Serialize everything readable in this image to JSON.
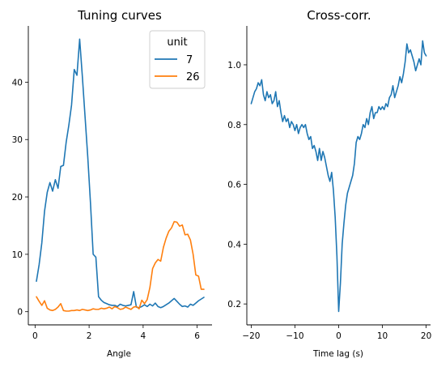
{
  "chart_data": [
    {
      "type": "line",
      "title": "Tuning curves",
      "xlabel": "Angle",
      "ylabel": "",
      "xlim": [
        -0.25,
        6.55
      ],
      "ylim": [
        -2.3,
        49.8
      ],
      "xticks": [
        0,
        2,
        4,
        6
      ],
      "yticks": [
        0,
        10,
        20,
        30,
        40
      ],
      "grid": false,
      "legend": {
        "title": "unit",
        "placement": "top-right"
      },
      "series": [
        {
          "name": "7",
          "color": "#1f77b4",
          "x": [
            0.05,
            0.15,
            0.25,
            0.35,
            0.45,
            0.55,
            0.65,
            0.75,
            0.85,
            0.95,
            1.05,
            1.15,
            1.25,
            1.35,
            1.45,
            1.55,
            1.65,
            1.75,
            1.85,
            1.95,
            2.05,
            2.15,
            2.25,
            2.35,
            2.45,
            2.55,
            2.65,
            2.75,
            2.85,
            2.95,
            3.05,
            3.15,
            3.25,
            3.35,
            3.45,
            3.55,
            3.65,
            3.75,
            3.85,
            3.95,
            4.05,
            4.15,
            4.25,
            4.35,
            4.45,
            4.55,
            4.65,
            4.75,
            4.85,
            4.95,
            5.05,
            5.15,
            5.25,
            5.35,
            5.45,
            5.55,
            5.65,
            5.75,
            5.85,
            5.95,
            6.05,
            6.15,
            6.25
          ],
          "values": [
            5.3,
            8.2,
            12.0,
            17.5,
            20.8,
            22.5,
            21.0,
            23.0,
            21.5,
            25.3,
            25.5,
            29.5,
            32.5,
            36.0,
            42.2,
            41.2,
            47.5,
            41.0,
            34.0,
            27.0,
            19.0,
            10.0,
            9.5,
            2.6,
            2.0,
            1.6,
            1.4,
            1.2,
            1.1,
            1.1,
            0.9,
            1.3,
            1.1,
            1.0,
            1.1,
            1.2,
            3.5,
            0.8,
            0.7,
            0.9,
            1.2,
            0.9,
            1.3,
            1.0,
            1.5,
            0.9,
            0.7,
            0.9,
            1.2,
            1.5,
            1.9,
            2.3,
            1.8,
            1.3,
            0.9,
            1.0,
            0.8,
            1.3,
            1.1,
            1.5,
            1.9,
            2.2,
            2.5
          ]
        },
        {
          "name": "26",
          "color": "#ff7f0e",
          "x": [
            0.05,
            0.15,
            0.25,
            0.35,
            0.45,
            0.55,
            0.65,
            0.75,
            0.85,
            0.95,
            1.05,
            1.15,
            1.25,
            1.35,
            1.45,
            1.55,
            1.65,
            1.75,
            1.85,
            1.95,
            2.05,
            2.15,
            2.25,
            2.35,
            2.45,
            2.55,
            2.65,
            2.75,
            2.85,
            2.95,
            3.05,
            3.15,
            3.25,
            3.35,
            3.45,
            3.55,
            3.65,
            3.75,
            3.85,
            3.95,
            4.05,
            4.15,
            4.25,
            4.35,
            4.45,
            4.55,
            4.65,
            4.75,
            4.85,
            4.95,
            5.05,
            5.15,
            5.25,
            5.35,
            5.45,
            5.55,
            5.65,
            5.75,
            5.85,
            5.95,
            6.05,
            6.15,
            6.25
          ],
          "values": [
            2.6,
            1.8,
            1.1,
            1.9,
            0.6,
            0.3,
            0.2,
            0.4,
            0.8,
            1.4,
            0.2,
            0.1,
            0.1,
            0.2,
            0.2,
            0.3,
            0.2,
            0.4,
            0.3,
            0.2,
            0.3,
            0.5,
            0.4,
            0.4,
            0.6,
            0.5,
            0.6,
            0.8,
            0.5,
            0.9,
            0.7,
            0.4,
            0.5,
            0.8,
            0.6,
            0.4,
            0.8,
            0.9,
            0.5,
            2.0,
            1.4,
            2.1,
            4.2,
            7.5,
            8.5,
            9.1,
            8.8,
            11.2,
            12.8,
            14.0,
            14.6,
            15.7,
            15.6,
            14.9,
            15.1,
            13.4,
            13.5,
            12.5,
            10.0,
            6.4,
            6.2,
            3.9,
            3.9
          ]
        }
      ]
    },
    {
      "type": "line",
      "title": "Cross-corr.",
      "xlabel": "Time lag (s)",
      "ylabel": "",
      "xlim": [
        -21.0,
        21.0
      ],
      "ylim": [
        0.13,
        1.13
      ],
      "xticks": [
        -20,
        -10,
        0,
        10,
        20
      ],
      "yticks": [
        0.2,
        0.4,
        0.6,
        0.8,
        1.0
      ],
      "grid": false,
      "series": [
        {
          "color": "#1f77b4",
          "x": [
            -20.0,
            -19.6,
            -19.2,
            -18.8,
            -18.4,
            -18.0,
            -17.6,
            -17.2,
            -16.8,
            -16.4,
            -16.0,
            -15.6,
            -15.2,
            -14.8,
            -14.4,
            -14.0,
            -13.6,
            -13.2,
            -12.8,
            -12.4,
            -12.0,
            -11.6,
            -11.2,
            -10.8,
            -10.4,
            -10.0,
            -9.6,
            -9.2,
            -8.8,
            -8.4,
            -8.0,
            -7.6,
            -7.2,
            -6.8,
            -6.4,
            -6.0,
            -5.6,
            -5.2,
            -4.8,
            -4.4,
            -4.0,
            -3.6,
            -3.2,
            -2.8,
            -2.4,
            -2.0,
            -1.6,
            -1.2,
            -0.8,
            -0.4,
            0.0,
            0.4,
            0.8,
            1.2,
            1.6,
            2.0,
            2.4,
            2.8,
            3.2,
            3.6,
            4.0,
            4.4,
            4.8,
            5.2,
            5.6,
            6.0,
            6.4,
            6.8,
            7.2,
            7.6,
            8.0,
            8.4,
            8.8,
            9.2,
            9.6,
            10.0,
            10.4,
            10.8,
            11.2,
            11.6,
            12.0,
            12.4,
            12.8,
            13.2,
            13.6,
            14.0,
            14.4,
            14.8,
            15.2,
            15.6,
            16.0,
            16.4,
            16.8,
            17.2,
            17.6,
            18.0,
            18.4,
            18.8,
            19.2,
            19.6,
            20.0
          ],
          "values": [
            0.87,
            0.89,
            0.91,
            0.92,
            0.94,
            0.93,
            0.95,
            0.9,
            0.88,
            0.91,
            0.89,
            0.9,
            0.87,
            0.88,
            0.91,
            0.86,
            0.88,
            0.84,
            0.81,
            0.83,
            0.81,
            0.82,
            0.79,
            0.81,
            0.8,
            0.78,
            0.8,
            0.77,
            0.79,
            0.8,
            0.79,
            0.8,
            0.77,
            0.75,
            0.76,
            0.72,
            0.73,
            0.71,
            0.68,
            0.72,
            0.68,
            0.71,
            0.69,
            0.66,
            0.63,
            0.61,
            0.64,
            0.58,
            0.49,
            0.36,
            0.175,
            0.27,
            0.4,
            0.47,
            0.53,
            0.57,
            0.59,
            0.61,
            0.63,
            0.67,
            0.74,
            0.76,
            0.75,
            0.77,
            0.8,
            0.79,
            0.82,
            0.8,
            0.84,
            0.86,
            0.82,
            0.84,
            0.84,
            0.86,
            0.85,
            0.86,
            0.85,
            0.87,
            0.86,
            0.89,
            0.9,
            0.93,
            0.89,
            0.91,
            0.93,
            0.96,
            0.94,
            0.97,
            1.01,
            1.07,
            1.04,
            1.05,
            1.03,
            1.01,
            0.98,
            1.0,
            1.02,
            1.0,
            1.08,
            1.04,
            1.03
          ]
        }
      ]
    }
  ]
}
